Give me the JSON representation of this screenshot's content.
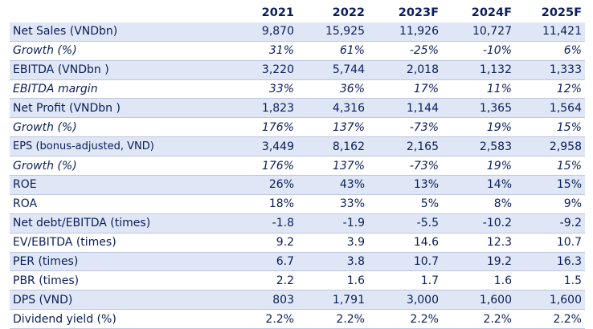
{
  "header": [
    "",
    "2021",
    "2022",
    "2023F",
    "2024F",
    "2025F"
  ],
  "rows": [
    {
      "label": "Net Sales (VNDbn)",
      "values": [
        "9,870",
        "15,925",
        "11,926",
        "10,727",
        "11,421"
      ],
      "shade": true,
      "italic": false
    },
    {
      "label": "Growth (%)",
      "values": [
        "31%",
        "61%",
        "-25%",
        "-10%",
        "6%"
      ],
      "shade": false,
      "italic": true
    },
    {
      "label": "EBITDA (VNDbn )",
      "values": [
        "3,220",
        "5,744",
        "2,018",
        "1,132",
        "1,333"
      ],
      "shade": true,
      "italic": false
    },
    {
      "label": "EBITDA margin",
      "values": [
        "33%",
        "36%",
        "17%",
        "11%",
        "12%"
      ],
      "shade": false,
      "italic": true
    },
    {
      "label": "Net Profit (VNDbn )",
      "values": [
        "1,823",
        "4,316",
        "1,144",
        "1,365",
        "1,564"
      ],
      "shade": true,
      "italic": false
    },
    {
      "label": "Growth (%)",
      "values": [
        "176%",
        "137%",
        "-73%",
        "19%",
        "15%"
      ],
      "shade": false,
      "italic": true
    },
    {
      "label": "EPS (bonus-adjusted, VND)",
      "values": [
        "3,449",
        "8,162",
        "2,165",
        "2,583",
        "2,958"
      ],
      "shade": true,
      "italic": false,
      "small": true
    },
    {
      "label": "Growth (%)",
      "values": [
        "176%",
        "137%",
        "-73%",
        "19%",
        "15%"
      ],
      "shade": false,
      "italic": true
    },
    {
      "label": "ROE",
      "values": [
        "26%",
        "43%",
        "13%",
        "14%",
        "15%"
      ],
      "shade": true,
      "italic": false
    },
    {
      "label": "ROA",
      "values": [
        "18%",
        "33%",
        "5%",
        "8%",
        "9%"
      ],
      "shade": false,
      "italic": false
    },
    {
      "label": "Net debt/EBITDA (times)",
      "values": [
        "-1.8",
        "-1.9",
        "-5.5",
        "-10.2",
        "-9.2"
      ],
      "shade": true,
      "italic": false
    },
    {
      "label": "EV/EBITDA (times)",
      "values": [
        "9.2",
        "3.9",
        "14.6",
        "12.3",
        "10.7"
      ],
      "shade": false,
      "italic": false
    },
    {
      "label": "PER (times)",
      "values": [
        "6.7",
        "3.8",
        "10.7",
        "19.2",
        "16.3"
      ],
      "shade": true,
      "italic": false
    },
    {
      "label": "PBR (times)",
      "values": [
        "2.2",
        "1.6",
        "1.7",
        "1.6",
        "1.5"
      ],
      "shade": false,
      "italic": false
    },
    {
      "label": "DPS (VND)",
      "values": [
        "803",
        "1,791",
        "3,000",
        "1,600",
        "1,600"
      ],
      "shade": true,
      "italic": false
    },
    {
      "label": "Dividend yield (%)",
      "values": [
        "2.2%",
        "2.2%",
        "2.2%",
        "2.2%",
        "2.2%"
      ],
      "shade": false,
      "italic": false
    }
  ]
}
